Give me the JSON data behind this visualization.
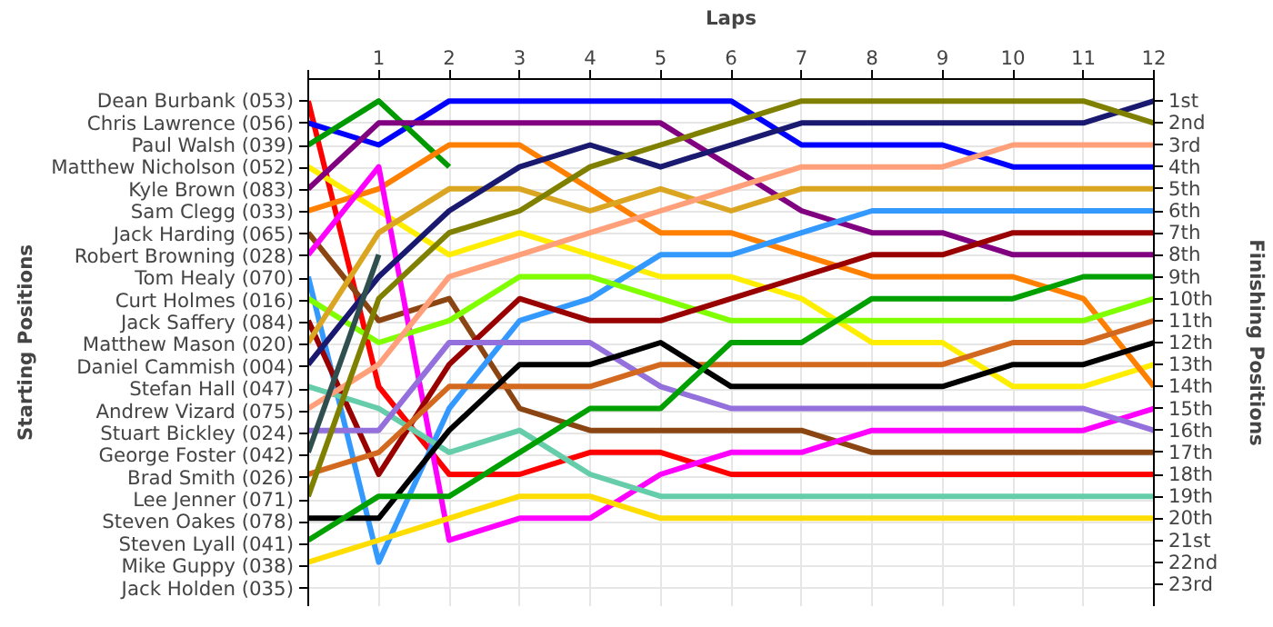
{
  "chart_data": {
    "type": "line",
    "xlabel": "Laps",
    "annotations": [
      "Starting Positions"
    ],
    "y2label": "Finishing Positions",
    "x": [
      0,
      1,
      2,
      3,
      4,
      5,
      6,
      7,
      8,
      9,
      10,
      11,
      12
    ],
    "xlim": [
      0,
      12
    ],
    "xticks": [
      {
        "value": 0,
        "label": null
      },
      1,
      2,
      3,
      4,
      5,
      6,
      7,
      8,
      9,
      10,
      11,
      12
    ],
    "y_categories": [
      "Dean Burbank (053)",
      "Chris Lawrence (056)",
      "Paul Walsh (039)",
      "Matthew Nicholson (052)",
      "Kyle Brown (083)",
      "Sam Clegg (033)",
      "Jack Harding (065)",
      "Robert Browning (028)",
      "Tom Healy (070)",
      "Curt Holmes (016)",
      "Jack Saffery (084)",
      "Matthew Mason (020)",
      "Daniel Cammish (004)",
      "Stefan Hall (047)",
      "Andrew Vizard (075)",
      "Stuart Bickley (024)",
      "George Foster (042)",
      "Brad Smith (026)",
      "Lee Jenner (071)",
      "Steven Oakes (078)",
      "Steven Lyall (041)",
      "Mike Guppy (038)",
      "Jack Holden (035)"
    ],
    "y2lim": [
      24,
      0
    ],
    "y2ticks": [
      {
        "value": 1,
        "label": "1st"
      },
      {
        "value": 2,
        "label": "2nd"
      },
      {
        "value": 3,
        "label": "3rd"
      },
      {
        "value": 4,
        "label": "4th"
      },
      {
        "value": 5,
        "label": "5th"
      },
      {
        "value": 6,
        "label": "6th"
      },
      {
        "value": 7,
        "label": "7th"
      },
      {
        "value": 8,
        "label": "8th"
      },
      {
        "value": 9,
        "label": "9th"
      },
      {
        "value": 10,
        "label": "10th"
      },
      {
        "value": 11,
        "label": "11th"
      },
      {
        "value": 12,
        "label": "12th"
      },
      {
        "value": 13,
        "label": "13th"
      },
      {
        "value": 14,
        "label": "14th"
      },
      {
        "value": 15,
        "label": "15th"
      },
      {
        "value": 16,
        "label": "16th"
      },
      {
        "value": 17,
        "label": "17th"
      },
      {
        "value": 18,
        "label": "18th"
      },
      {
        "value": 19,
        "label": "19th"
      },
      {
        "value": 20,
        "label": "20th"
      },
      {
        "value": 21,
        "label": "21st"
      },
      {
        "value": 22,
        "label": "22nd"
      },
      {
        "value": 23,
        "label": "23rd"
      }
    ],
    "grid": true,
    "line_style": "solid",
    "series": [
      {
        "axis": "y2",
        "color": "#ff0000",
        "values": [
          1,
          14,
          18,
          18,
          17,
          17,
          18,
          18,
          18,
          18,
          18,
          18,
          18
        ]
      },
      {
        "axis": "y2",
        "color": "#0000ff",
        "values": [
          2,
          3,
          1,
          1,
          1,
          1,
          1,
          3,
          3,
          3,
          4,
          4,
          4
        ]
      },
      {
        "axis": "y2",
        "color": "#009900",
        "values": [
          3,
          1,
          4,
          null,
          null,
          null,
          null,
          null,
          null,
          null,
          null,
          null,
          null
        ]
      },
      {
        "axis": "y2",
        "color": "#ffee00",
        "values": [
          4,
          6,
          8,
          7,
          8,
          9,
          9,
          10,
          12,
          12,
          14,
          14,
          13
        ]
      },
      {
        "axis": "y2",
        "color": "#800080",
        "values": [
          5,
          2,
          2,
          2,
          2,
          2,
          4,
          6,
          7,
          7,
          8,
          8,
          8
        ]
      },
      {
        "axis": "y2",
        "color": "#ff8000",
        "values": [
          6,
          5,
          3,
          3,
          5,
          7,
          7,
          8,
          9,
          9,
          9,
          10,
          14
        ]
      },
      {
        "axis": "y2",
        "color": "#8b4513",
        "values": [
          7,
          11,
          10,
          15,
          16,
          16,
          16,
          16,
          17,
          17,
          17,
          17,
          17
        ]
      },
      {
        "axis": "y2",
        "color": "#ff00ff",
        "values": [
          8,
          4,
          21,
          20,
          20,
          18,
          17,
          17,
          16,
          16,
          16,
          16,
          15
        ]
      },
      {
        "axis": "y2",
        "color": "#3399ff",
        "values": [
          9,
          22,
          15,
          11,
          10,
          8,
          8,
          7,
          6,
          6,
          6,
          6,
          6
        ]
      },
      {
        "axis": "y2",
        "color": "#80ff00",
        "values": [
          10,
          12,
          11,
          9,
          9,
          10,
          11,
          11,
          11,
          11,
          11,
          11,
          10
        ]
      },
      {
        "axis": "y2",
        "color": "#990000",
        "values": [
          11,
          18,
          13,
          10,
          11,
          11,
          10,
          9,
          8,
          8,
          7,
          7,
          7
        ]
      },
      {
        "axis": "y2",
        "color": "#daa520",
        "values": [
          12,
          7,
          5,
          5,
          6,
          5,
          6,
          5,
          5,
          5,
          5,
          5,
          5
        ]
      },
      {
        "axis": "y2",
        "color": "#191970",
        "values": [
          13,
          9,
          6,
          4,
          3,
          4,
          3,
          2,
          2,
          2,
          2,
          2,
          1
        ]
      },
      {
        "axis": "y2",
        "color": "#66cdaa",
        "values": [
          14,
          15,
          17,
          16,
          18,
          19,
          19,
          19,
          19,
          19,
          19,
          19,
          19
        ]
      },
      {
        "axis": "y2",
        "color": "#ffa07a",
        "values": [
          15,
          13,
          9,
          8,
          7,
          6,
          5,
          4,
          4,
          4,
          3,
          3,
          3
        ]
      },
      {
        "axis": "y2",
        "color": "#9370db",
        "values": [
          16,
          16,
          12,
          12,
          12,
          14,
          15,
          15,
          15,
          15,
          15,
          15,
          16
        ]
      },
      {
        "axis": "y2",
        "color": "#2f4f4f",
        "values": [
          17,
          8,
          null,
          null,
          null,
          null,
          null,
          null,
          null,
          null,
          null,
          null,
          null
        ]
      },
      {
        "axis": "y2",
        "color": "#d2691e",
        "values": [
          18,
          17,
          14,
          14,
          14,
          13,
          13,
          13,
          13,
          13,
          12,
          12,
          11
        ]
      },
      {
        "axis": "y2",
        "color": "#808000",
        "values": [
          19,
          10,
          7,
          6,
          4,
          3,
          2,
          1,
          1,
          1,
          1,
          1,
          2
        ]
      },
      {
        "axis": "y2",
        "color": "#000000",
        "values": [
          20,
          20,
          16,
          13,
          13,
          12,
          14,
          14,
          14,
          14,
          13,
          13,
          12
        ]
      },
      {
        "axis": "y2",
        "color": "#00a000",
        "values": [
          21,
          19,
          19,
          17,
          15,
          15,
          12,
          12,
          10,
          10,
          10,
          9,
          9
        ]
      },
      {
        "axis": "y2",
        "color": "#ffdd00",
        "values": [
          22,
          21,
          20,
          19,
          19,
          20,
          20,
          20,
          20,
          20,
          20,
          20,
          20
        ]
      }
    ]
  }
}
